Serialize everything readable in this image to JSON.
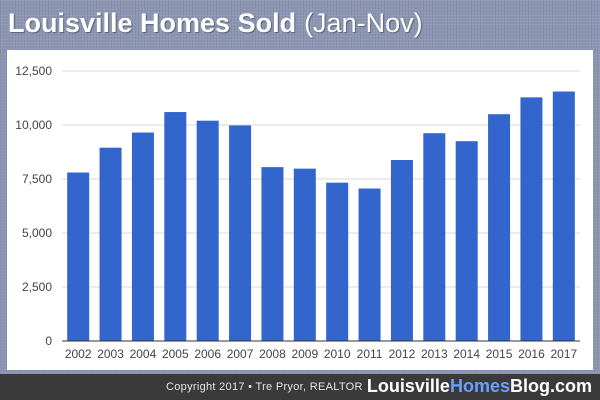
{
  "header": {
    "title": "Louisville Homes Sold",
    "subtitle": "(Jan-Nov)"
  },
  "footer": {
    "copyright": "Copyright 2017 • Tre Pryor, REALTOR",
    "brand_part1": "Louisville",
    "brand_part2": "Homes",
    "brand_part3": "Blog.com"
  },
  "colors": {
    "bar": "#3366cc",
    "grid": "#cccccc",
    "axis_text": "#444444",
    "brand_accent": "#6aa0ff"
  },
  "chart_data": {
    "type": "bar",
    "title": "Louisville Homes Sold (Jan-Nov)",
    "xlabel": "",
    "ylabel": "",
    "categories": [
      "2002",
      "2003",
      "2004",
      "2005",
      "2006",
      "2007",
      "2008",
      "2009",
      "2010",
      "2011",
      "2012",
      "2013",
      "2014",
      "2015",
      "2016",
      "2017"
    ],
    "values": [
      7800,
      8950,
      9650,
      10600,
      10200,
      9980,
      8050,
      7980,
      7330,
      7060,
      8380,
      9620,
      9250,
      10500,
      11280,
      11550
    ],
    "ylim": [
      0,
      12500
    ],
    "yticks": [
      0,
      2500,
      5000,
      7500,
      10000,
      12500
    ],
    "ytick_labels": [
      "0",
      "2,500",
      "5,000",
      "7,500",
      "10,000",
      "12,500"
    ],
    "grid": true,
    "legend": "none"
  }
}
